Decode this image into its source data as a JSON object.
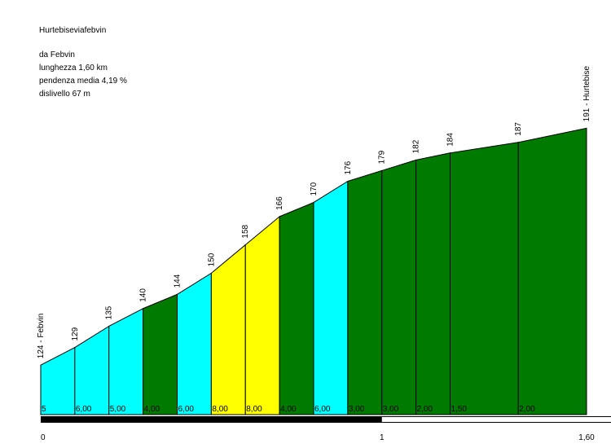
{
  "title": "Hurtebiseviafebvin",
  "info": {
    "start": "da Febvin",
    "length": "lunghezza 1,60 km",
    "avg_gradient": "pendenza media 4,19 %",
    "elevation_gain": "dislivello 67 m"
  },
  "chart_data": {
    "type": "area",
    "title": "Hurtebiseviafebvin",
    "xlabel": "",
    "ylabel": "",
    "x_unit": "km",
    "xlim": [
      0,
      1.6
    ],
    "ylim": [
      110,
      195
    ],
    "x_ticks": [
      {
        "value": 0,
        "label": "0"
      },
      {
        "value": 1,
        "label": "1"
      },
      {
        "value": 1.6,
        "label": "1,60"
      }
    ],
    "points": [
      {
        "x": 0.0,
        "y": 124,
        "label": "124 - Febvin"
      },
      {
        "x": 0.1,
        "y": 129,
        "label": "129"
      },
      {
        "x": 0.2,
        "y": 135,
        "label": "135"
      },
      {
        "x": 0.3,
        "y": 140,
        "label": "140"
      },
      {
        "x": 0.4,
        "y": 144,
        "label": "144"
      },
      {
        "x": 0.5,
        "y": 150,
        "label": "150"
      },
      {
        "x": 0.6,
        "y": 158,
        "label": "158"
      },
      {
        "x": 0.7,
        "y": 166,
        "label": "166"
      },
      {
        "x": 0.8,
        "y": 170,
        "label": "170"
      },
      {
        "x": 0.9,
        "y": 176,
        "label": "176"
      },
      {
        "x": 1.0,
        "y": 179,
        "label": "179"
      },
      {
        "x": 1.1,
        "y": 182,
        "label": "182"
      },
      {
        "x": 1.2,
        "y": 184,
        "label": "184"
      },
      {
        "x": 1.4,
        "y": 187,
        "label": "187"
      },
      {
        "x": 1.6,
        "y": 191,
        "label": "191 - Hurtebise"
      }
    ],
    "segments": [
      {
        "gradient": "5",
        "color": "#00ffff"
      },
      {
        "gradient": "6,00",
        "color": "#00ffff"
      },
      {
        "gradient": "5,00",
        "color": "#00ffff"
      },
      {
        "gradient": "4,00",
        "color": "#007a00"
      },
      {
        "gradient": "6,00",
        "color": "#00ffff"
      },
      {
        "gradient": "8,00",
        "color": "#ffff00"
      },
      {
        "gradient": "8,00",
        "color": "#ffff00"
      },
      {
        "gradient": "4,00",
        "color": "#007a00"
      },
      {
        "gradient": "6,00",
        "color": "#00ffff"
      },
      {
        "gradient": "3,00",
        "color": "#007a00"
      },
      {
        "gradient": "3,00",
        "color": "#007a00"
      },
      {
        "gradient": "2,00",
        "color": "#007a00"
      },
      {
        "gradient": "1,50",
        "color": "#007a00"
      },
      {
        "gradient": "2,00",
        "color": "#007a00"
      }
    ]
  }
}
